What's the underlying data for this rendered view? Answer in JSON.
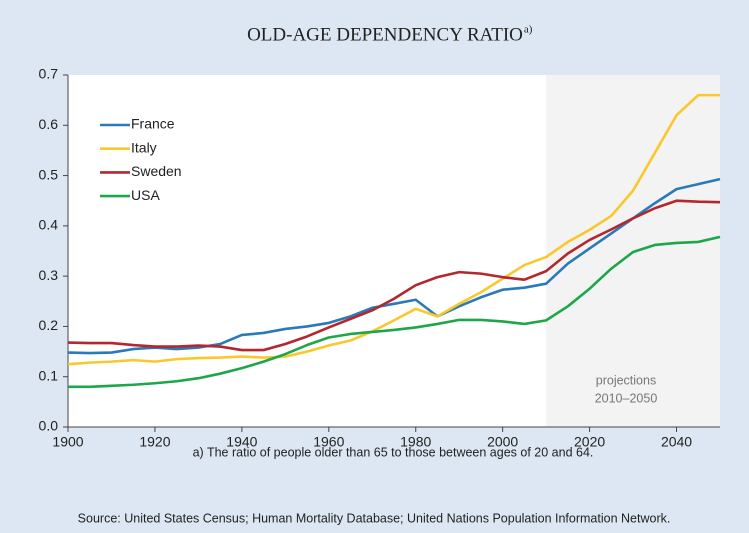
{
  "chart_data": {
    "type": "line",
    "title": "OLD-AGE DEPENDENCY RATIO",
    "title_note": "a)",
    "footnote": "a) The ratio of people older than 65 to those between ages of 20 and 64.",
    "source": "Source: United States Census; Human Mortality Database; United Nations Population Information Network.",
    "annotation": [
      "projections",
      "2010–2050"
    ],
    "projection_range": [
      2010,
      2050
    ],
    "x": [
      1900,
      1905,
      1910,
      1915,
      1920,
      1925,
      1930,
      1935,
      1940,
      1945,
      1950,
      1955,
      1960,
      1965,
      1970,
      1975,
      1980,
      1985,
      1990,
      1995,
      2000,
      2005,
      2010,
      2015,
      2020,
      2025,
      2030,
      2035,
      2040,
      2045,
      2050
    ],
    "series": [
      {
        "name": "France",
        "color": "#2a7ab9",
        "values": [
          0.148,
          0.147,
          0.148,
          0.155,
          0.158,
          0.155,
          0.158,
          0.165,
          0.183,
          0.187,
          0.195,
          0.2,
          0.207,
          0.22,
          0.237,
          0.245,
          0.253,
          0.22,
          0.24,
          0.258,
          0.273,
          0.277,
          0.285,
          0.325,
          0.355,
          0.385,
          0.415,
          0.445,
          0.473,
          0.483,
          0.493
        ]
      },
      {
        "name": "Italy",
        "color": "#f8c82c",
        "values": [
          0.125,
          0.128,
          0.13,
          0.133,
          0.13,
          0.135,
          0.137,
          0.138,
          0.14,
          0.138,
          0.14,
          0.15,
          0.162,
          0.172,
          0.19,
          0.212,
          0.235,
          0.22,
          0.245,
          0.268,
          0.295,
          0.322,
          0.338,
          0.368,
          0.392,
          0.42,
          0.47,
          0.545,
          0.62,
          0.66,
          0.66
        ]
      },
      {
        "name": "Sweden",
        "color": "#b3272e",
        "values": [
          0.168,
          0.167,
          0.167,
          0.163,
          0.16,
          0.16,
          0.162,
          0.16,
          0.153,
          0.153,
          0.165,
          0.18,
          0.198,
          0.215,
          0.232,
          0.255,
          0.282,
          0.298,
          0.308,
          0.305,
          0.298,
          0.293,
          0.31,
          0.345,
          0.372,
          0.393,
          0.415,
          0.435,
          0.45,
          0.448,
          0.447
        ]
      },
      {
        "name": "USA",
        "color": "#1ea64b",
        "values": [
          0.08,
          0.08,
          0.082,
          0.084,
          0.087,
          0.091,
          0.097,
          0.106,
          0.117,
          0.13,
          0.145,
          0.163,
          0.178,
          0.185,
          0.189,
          0.193,
          0.198,
          0.205,
          0.213,
          0.213,
          0.21,
          0.205,
          0.212,
          0.24,
          0.275,
          0.315,
          0.348,
          0.362,
          0.366,
          0.368,
          0.378
        ]
      }
    ],
    "xlim": [
      1900,
      2050
    ],
    "xticks": [
      1900,
      1920,
      1940,
      1960,
      1980,
      2000,
      2020,
      2040
    ],
    "ylim": [
      0,
      0.7
    ],
    "yticks": [
      {
        "value": 0,
        "label": "0.0"
      },
      0.1,
      0.2,
      0.3,
      0.4,
      0.5,
      0.6,
      0.7
    ],
    "legend": "upper-left"
  }
}
